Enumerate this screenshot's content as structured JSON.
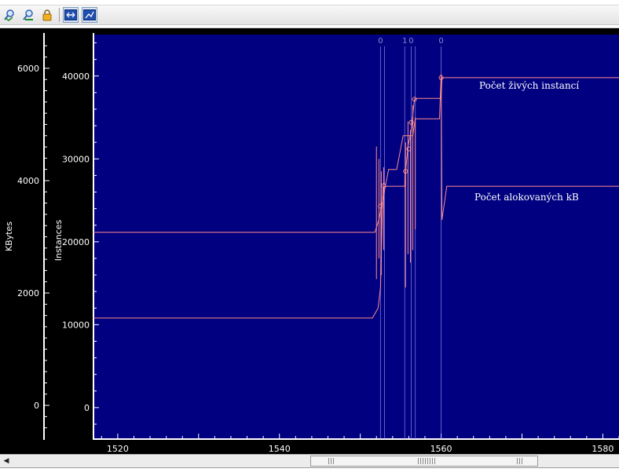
{
  "toolbar": {
    "buttons": [
      {
        "name": "zoom-in-icon",
        "pressed": false
      },
      {
        "name": "zoom-out-icon",
        "pressed": false
      },
      {
        "name": "lock-icon",
        "pressed": false
      },
      {
        "name": "fit-horizontal-icon",
        "pressed": true
      },
      {
        "name": "chart-view-icon",
        "pressed": true
      }
    ]
  },
  "chart_data": {
    "type": "line",
    "title": "",
    "xlabel": "",
    "ylabel_left": "KBytes",
    "ylabel_right": "Instances",
    "xlim": [
      1517,
      1582
    ],
    "ylim_kbytes": [
      -600,
      6600
    ],
    "ylim_instances": [
      -3800,
      45000
    ],
    "kbytes_ticks": [
      0,
      2000,
      4000,
      6000
    ],
    "instances_ticks": [
      0,
      10000,
      20000,
      30000,
      40000
    ],
    "x_ticks": [
      1520,
      1540,
      1560,
      1580
    ],
    "background": "#000080",
    "line_color": "#ff8c8c",
    "marker_color": "#a0a0ff",
    "series": [
      {
        "name": "Počet živých instancí",
        "axis": "instances",
        "points": [
          [
            1517,
            10800
          ],
          [
            1551.5,
            10800
          ],
          [
            1552.2,
            12000
          ],
          [
            1552.5,
            14500
          ],
          [
            1552.8,
            26500
          ],
          [
            1553.3,
            26700
          ],
          [
            1555.5,
            26700
          ],
          [
            1555.6,
            28500
          ],
          [
            1555.9,
            31500
          ],
          [
            1556.3,
            33500
          ],
          [
            1556.7,
            37200
          ],
          [
            1557,
            37300
          ],
          [
            1560,
            37300
          ],
          [
            1560.1,
            39800
          ],
          [
            1582,
            39800
          ]
        ]
      },
      {
        "name": "Počet alokovaných kB",
        "axis": "kbytes",
        "points": [
          [
            1517,
            3080
          ],
          [
            1551.8,
            3080
          ],
          [
            1552.3,
            3300
          ],
          [
            1553.5,
            4200
          ],
          [
            1554.5,
            4200
          ],
          [
            1555.3,
            4800
          ],
          [
            1556.5,
            4800
          ],
          [
            1556.8,
            5100
          ],
          [
            1559.8,
            5100
          ],
          [
            1560,
            5900
          ],
          [
            1560.1,
            3300
          ],
          [
            1560.7,
            3900
          ],
          [
            1582,
            3900
          ]
        ]
      }
    ],
    "spikes": [
      {
        "axis": "instances",
        "x": 1552.0,
        "y1": 15500,
        "y2": 31500
      },
      {
        "axis": "instances",
        "x": 1552.3,
        "y1": 18000,
        "y2": 30000
      },
      {
        "axis": "instances",
        "x": 1552.6,
        "y1": 16000,
        "y2": 28500
      },
      {
        "axis": "instances",
        "x": 1552.9,
        "y1": 19000,
        "y2": 29000
      },
      {
        "axis": "instances",
        "x": 1555.6,
        "y1": 14500,
        "y2": 32000
      },
      {
        "axis": "instances",
        "x": 1555.9,
        "y1": 18500,
        "y2": 34500
      },
      {
        "axis": "instances",
        "x": 1556.2,
        "y1": 17500,
        "y2": 33500
      },
      {
        "axis": "instances",
        "x": 1556.5,
        "y1": 19000,
        "y2": 36500
      },
      {
        "axis": "instances",
        "x": 1556.8,
        "y1": 21500,
        "y2": 35000
      }
    ],
    "markers": [
      {
        "x": 1552.5,
        "y": 24300,
        "axis": "instances"
      },
      {
        "x": 1552.9,
        "y": 26800,
        "axis": "instances"
      },
      {
        "x": 1555.6,
        "y": 28500,
        "axis": "instances"
      },
      {
        "x": 1556.0,
        "y": 31200,
        "axis": "instances"
      },
      {
        "x": 1556.3,
        "y": 34400,
        "axis": "instances"
      },
      {
        "x": 1556.7,
        "y": 37200,
        "axis": "instances"
      },
      {
        "x": 1560.0,
        "y": 39800,
        "axis": "instances"
      }
    ],
    "events": [
      {
        "x": 1552.5,
        "label": "0"
      },
      {
        "x": 1553.0,
        "label": ""
      },
      {
        "x": 1555.5,
        "label": "1"
      },
      {
        "x": 1556.3,
        "label": "0"
      },
      {
        "x": 1556.8,
        "label": ""
      },
      {
        "x": 1560.0,
        "label": "0"
      }
    ],
    "annotations": [
      {
        "text": "Počet živých instancí"
      },
      {
        "text": "Počet alokovaných kB"
      }
    ]
  },
  "scrollbar": {
    "left_arrow": "◀"
  }
}
